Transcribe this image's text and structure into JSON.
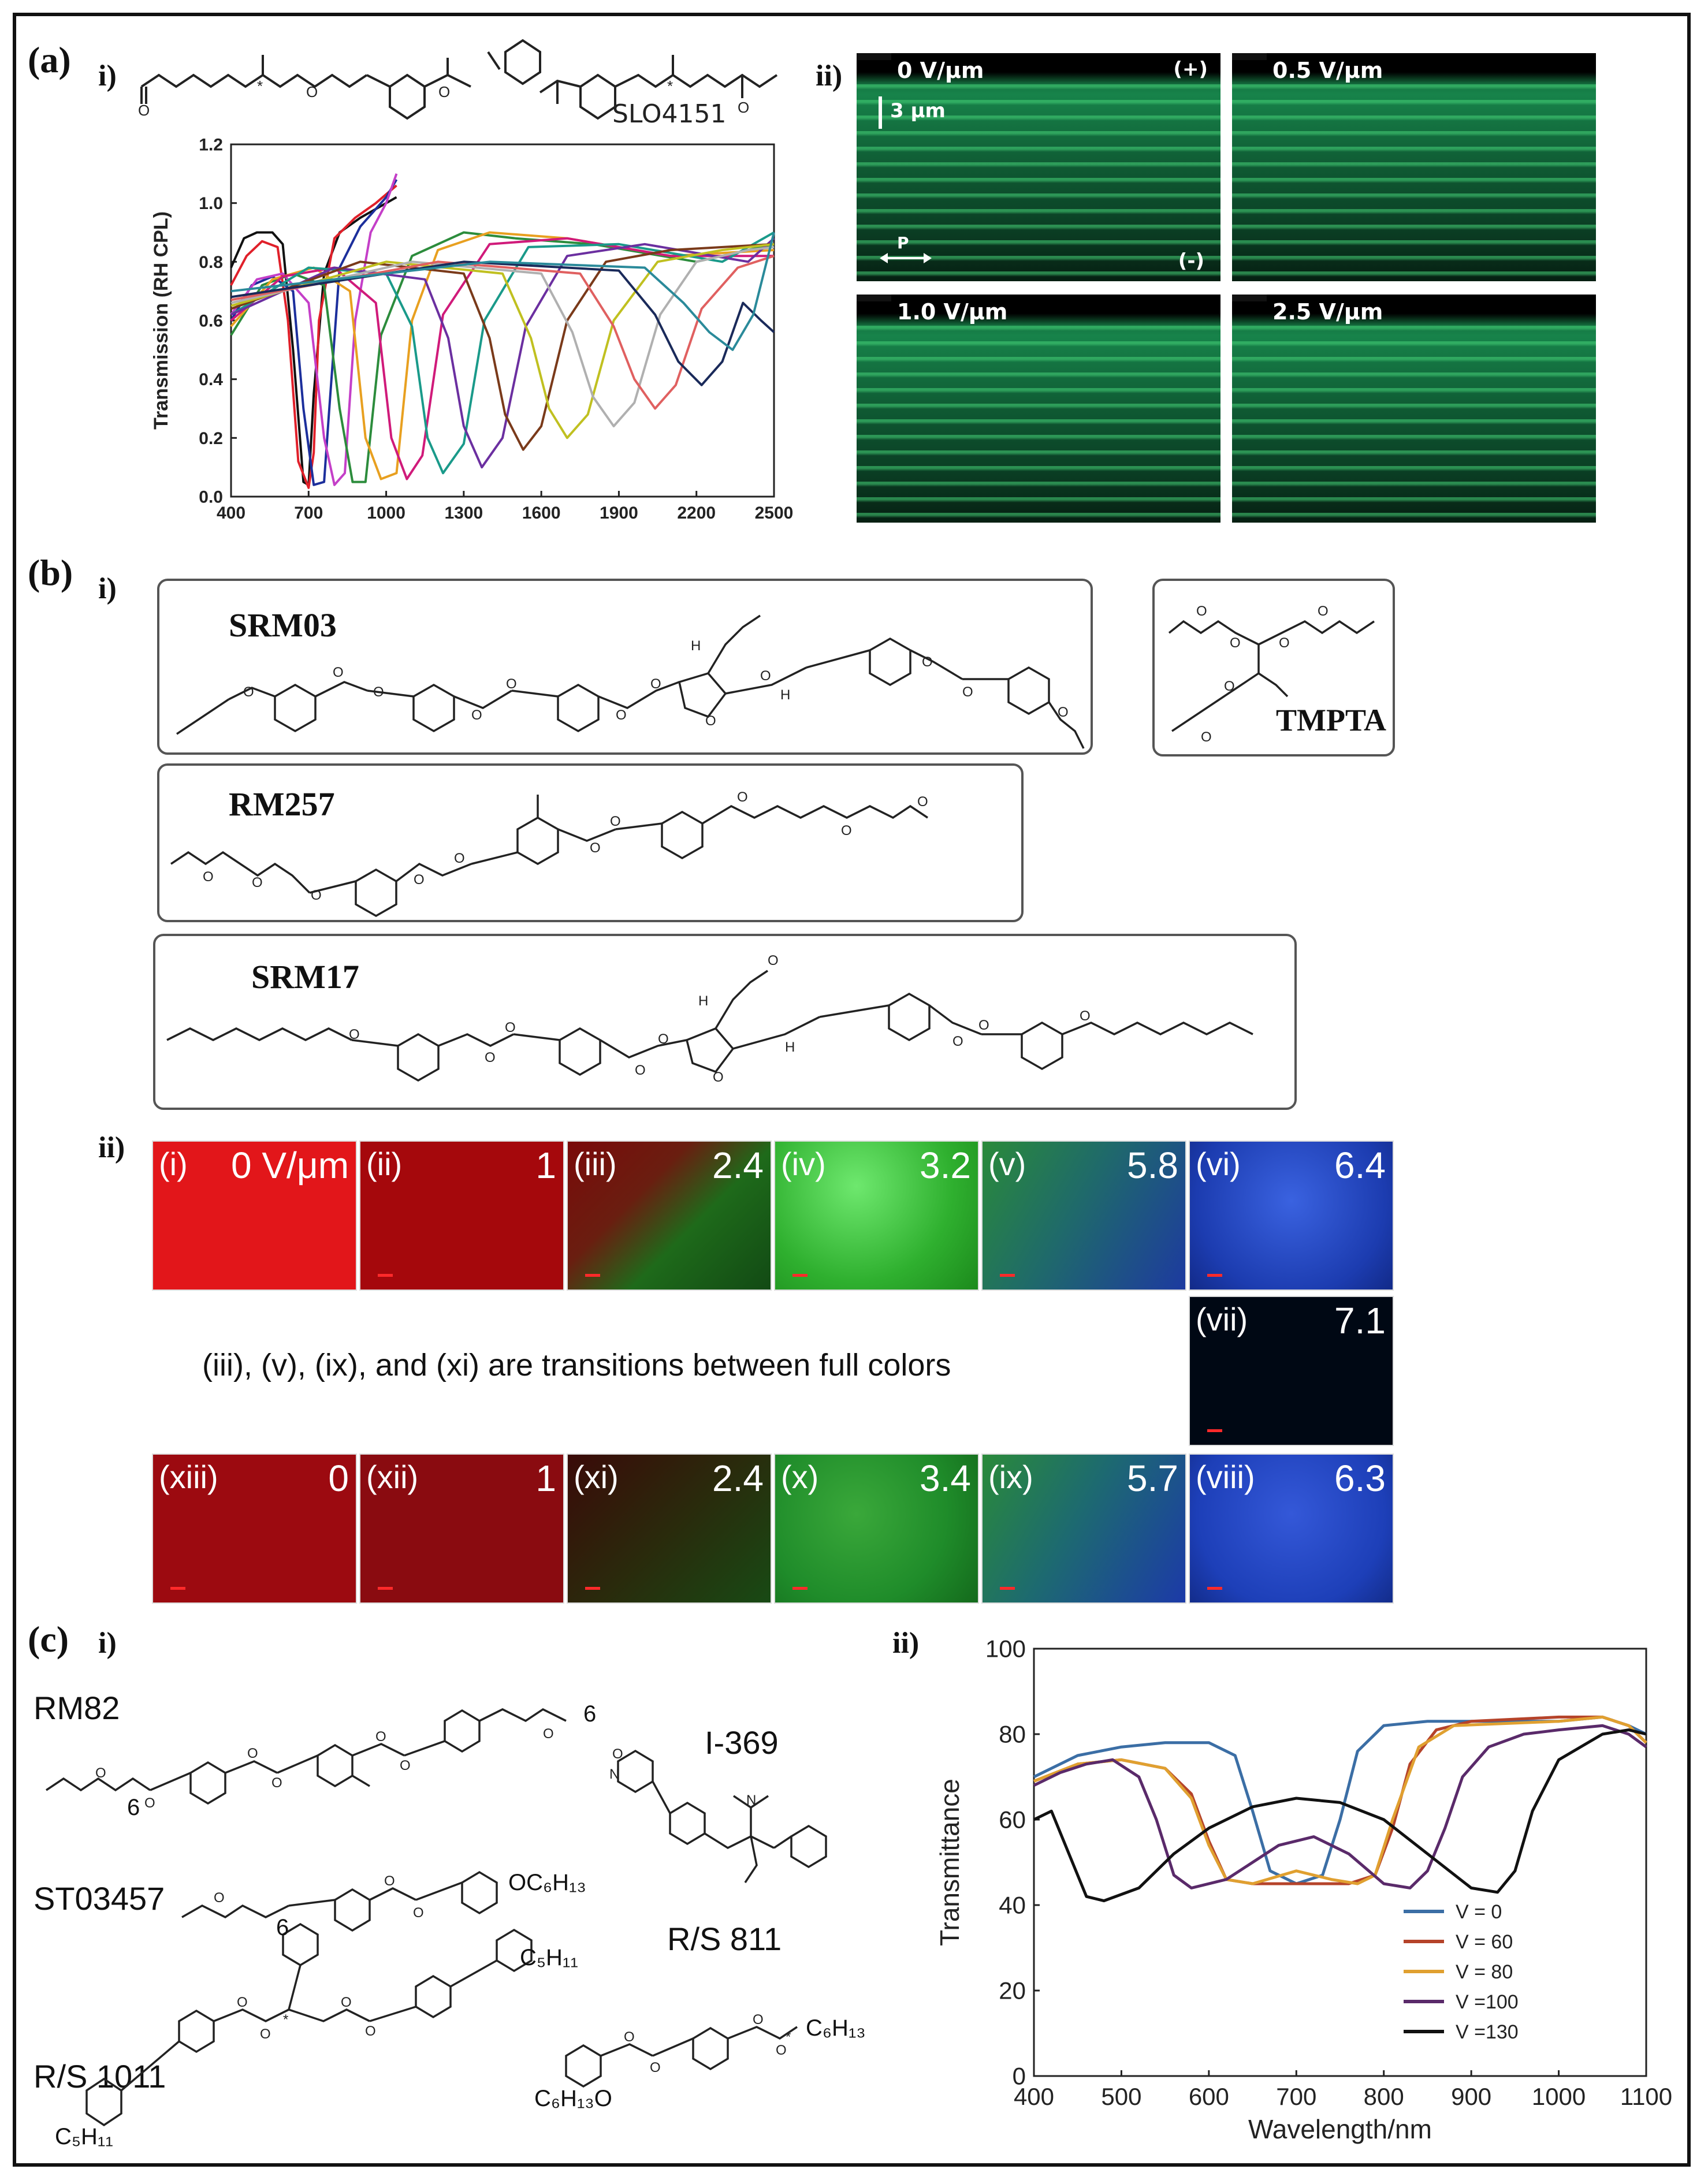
{
  "panel_labels": {
    "a": "(a)",
    "b": "(b)",
    "c": "(c)"
  },
  "sub_labels": {
    "i": "i)",
    "ii": "ii)"
  },
  "panel_a": {
    "compound_name": "SLO4151",
    "micrographs": [
      {
        "field": "0 V/μm",
        "plus": "(+)",
        "minus": "(-)",
        "scale": "3 μm",
        "pol": "P"
      },
      {
        "field": "0.5 V/μm"
      },
      {
        "field": "1.0 V/μm"
      },
      {
        "field": "2.5 V/μm"
      }
    ]
  },
  "panel_b": {
    "compounds": [
      "SRM03",
      "TMPTA",
      "RM257",
      "SRM17"
    ],
    "tiles_row1": [
      {
        "id": "(i)",
        "value": "0 V/μm",
        "color": "#e2161a"
      },
      {
        "id": "(ii)",
        "value": "1",
        "color": "#a5080c"
      },
      {
        "id": "(iii)",
        "value": "2.4",
        "color": "mix-red-green"
      },
      {
        "id": "(iv)",
        "value": "3.2",
        "color": "#33c233"
      },
      {
        "id": "(v)",
        "value": "5.8",
        "color": "mix-green-blue"
      },
      {
        "id": "(vi)",
        "value": "6.4",
        "color": "#1f48c8"
      }
    ],
    "tile_vii": {
      "id": "(vii)",
      "value": "7.1",
      "color": "#000814"
    },
    "note": "(iii), (v), (ix), and (xi) are transitions between full colors",
    "tiles_row3": [
      {
        "id": "(xiii)",
        "value": "0",
        "color": "#9c0a10"
      },
      {
        "id": "(xii)",
        "value": "1",
        "color": "#8a0b10"
      },
      {
        "id": "(xi)",
        "value": "2.4",
        "color": "mix-dark"
      },
      {
        "id": "(x)",
        "value": "3.4",
        "color": "#1f8c2a"
      },
      {
        "id": "(ix)",
        "value": "5.7",
        "color": "mix-green-blue"
      },
      {
        "id": "(viii)",
        "value": "6.3",
        "color": "#1d3fb8"
      }
    ]
  },
  "panel_c": {
    "compounds": [
      "RM82",
      "I-369",
      "ST03457",
      "R/S 811",
      "R/S 1011"
    ],
    "substituents": {
      "oc6h13": "OC₆H₁₃",
      "c6h13": "C₆H₁₃",
      "c5h11": "C₅H₁₁",
      "h13c6o": "C₆H₁₃O",
      "six": "6"
    }
  },
  "chart_data": [
    {
      "type": "line",
      "xlabel": "",
      "ylabel": "Transmission (RH CPL)",
      "xlim": [
        400,
        2500
      ],
      "ylim": [
        0.0,
        1.2
      ],
      "x_ticks": [
        "400",
        "700",
        "1000",
        "1300",
        "1600",
        "1900",
        "2200",
        "2500"
      ],
      "y_ticks": [
        "0.0",
        "0.2",
        "0.4",
        "0.6",
        "0.8",
        "1.0",
        "1.2"
      ],
      "series": [
        {
          "color": "#111111",
          "x": [
            400,
            450,
            500,
            560,
            600,
            640,
            680,
            700,
            720,
            760,
            820,
            900,
            1000,
            1040
          ],
          "y": [
            0.78,
            0.88,
            0.9,
            0.9,
            0.86,
            0.5,
            0.05,
            0.04,
            0.35,
            0.76,
            0.9,
            0.95,
            1.0,
            1.02
          ]
        },
        {
          "color": "#e0202a",
          "x": [
            400,
            460,
            520,
            580,
            620,
            660,
            700,
            720,
            740,
            800,
            880,
            960,
            1040
          ],
          "y": [
            0.72,
            0.82,
            0.87,
            0.85,
            0.6,
            0.12,
            0.03,
            0.15,
            0.6,
            0.88,
            0.95,
            1.0,
            1.06
          ]
        },
        {
          "color": "#1c2f9c",
          "x": [
            400,
            480,
            560,
            640,
            680,
            720,
            760,
            780,
            820,
            900,
            1000,
            1040
          ],
          "y": [
            0.6,
            0.72,
            0.75,
            0.7,
            0.3,
            0.04,
            0.05,
            0.3,
            0.78,
            0.92,
            1.02,
            1.08
          ]
        },
        {
          "color": "#c43fc8",
          "x": [
            400,
            500,
            600,
            700,
            760,
            800,
            840,
            880,
            940,
            1000,
            1040
          ],
          "y": [
            0.62,
            0.74,
            0.76,
            0.66,
            0.2,
            0.04,
            0.08,
            0.6,
            0.9,
            1.0,
            1.1
          ]
        },
        {
          "color": "#2c8c3c",
          "x": [
            400,
            520,
            640,
            760,
            820,
            870,
            920,
            980,
            1100,
            1300,
            1500,
            1800,
            2200,
            2500
          ],
          "y": [
            0.55,
            0.72,
            0.76,
            0.72,
            0.3,
            0.05,
            0.05,
            0.55,
            0.82,
            0.9,
            0.88,
            0.86,
            0.8,
            0.86
          ]
        },
        {
          "color": "#e8a020",
          "x": [
            400,
            560,
            720,
            860,
            920,
            980,
            1040,
            1100,
            1200,
            1400,
            1700,
            2100,
            2500
          ],
          "y": [
            0.58,
            0.74,
            0.78,
            0.7,
            0.2,
            0.06,
            0.08,
            0.6,
            0.84,
            0.9,
            0.88,
            0.82,
            0.84
          ]
        },
        {
          "color": "#d01a7a",
          "x": [
            400,
            600,
            800,
            960,
            1020,
            1080,
            1140,
            1220,
            1400,
            1700,
            2100,
            2500
          ],
          "y": [
            0.6,
            0.75,
            0.78,
            0.66,
            0.2,
            0.06,
            0.14,
            0.62,
            0.86,
            0.88,
            0.82,
            0.82
          ]
        },
        {
          "color": "#1a9a8a",
          "x": [
            400,
            700,
            1000,
            1100,
            1160,
            1220,
            1300,
            1380,
            1550,
            1900,
            2300,
            2500
          ],
          "y": [
            0.62,
            0.78,
            0.76,
            0.58,
            0.2,
            0.08,
            0.18,
            0.6,
            0.85,
            0.86,
            0.8,
            0.9
          ]
        },
        {
          "color": "#6b2fa0",
          "x": [
            400,
            800,
            1150,
            1240,
            1300,
            1370,
            1450,
            1540,
            1700,
            2000,
            2400,
            2500
          ],
          "y": [
            0.62,
            0.78,
            0.74,
            0.54,
            0.24,
            0.1,
            0.2,
            0.58,
            0.82,
            0.86,
            0.8,
            0.88
          ]
        },
        {
          "color": "#7a3a1a",
          "x": [
            400,
            900,
            1300,
            1400,
            1460,
            1530,
            1600,
            1700,
            1850,
            2100,
            2500
          ],
          "y": [
            0.64,
            0.8,
            0.76,
            0.54,
            0.28,
            0.16,
            0.24,
            0.6,
            0.8,
            0.84,
            0.86
          ]
        },
        {
          "color": "#c0c020",
          "x": [
            400,
            1000,
            1450,
            1560,
            1630,
            1700,
            1780,
            1880,
            2050,
            2300,
            2500
          ],
          "y": [
            0.65,
            0.8,
            0.76,
            0.54,
            0.3,
            0.2,
            0.28,
            0.6,
            0.8,
            0.84,
            0.86
          ]
        },
        {
          "color": "#b0b0b0",
          "x": [
            400,
            1100,
            1600,
            1720,
            1800,
            1880,
            1960,
            2060,
            2200,
            2400,
            2500
          ],
          "y": [
            0.66,
            0.8,
            0.76,
            0.56,
            0.34,
            0.24,
            0.32,
            0.62,
            0.8,
            0.84,
            0.85
          ]
        },
        {
          "color": "#e06060",
          "x": [
            400,
            1200,
            1750,
            1880,
            1960,
            2040,
            2120,
            2220,
            2360,
            2500
          ],
          "y": [
            0.67,
            0.8,
            0.76,
            0.58,
            0.4,
            0.3,
            0.38,
            0.64,
            0.78,
            0.82
          ]
        },
        {
          "color": "#1a2a5a",
          "x": [
            400,
            1300,
            1900,
            2040,
            2130,
            2220,
            2300,
            2380,
            2450,
            2500
          ],
          "y": [
            0.68,
            0.8,
            0.77,
            0.62,
            0.46,
            0.38,
            0.46,
            0.66,
            0.6,
            0.56
          ]
        },
        {
          "color": "#2a8a9a",
          "x": [
            400,
            1400,
            2000,
            2150,
            2250,
            2340,
            2420,
            2500
          ],
          "y": [
            0.7,
            0.8,
            0.78,
            0.66,
            0.56,
            0.5,
            0.62,
            0.9
          ]
        }
      ]
    },
    {
      "type": "line",
      "xlabel": "Wavelength/nm",
      "ylabel": "Transmittance",
      "xlim": [
        400,
        1100
      ],
      "ylim": [
        0,
        100
      ],
      "x_ticks": [
        "400",
        "500",
        "600",
        "700",
        "800",
        "900",
        "1000",
        "1100"
      ],
      "y_ticks": [
        "0",
        "20",
        "40",
        "60",
        "80",
        "100"
      ],
      "legend_position": "bottom-right",
      "series": [
        {
          "name": "V = 0",
          "color": "#3b6ea5",
          "x": [
            400,
            450,
            500,
            550,
            600,
            630,
            650,
            670,
            700,
            730,
            750,
            770,
            800,
            850,
            900,
            1000,
            1050,
            1080,
            1100
          ],
          "y": [
            70,
            75,
            77,
            78,
            78,
            75,
            62,
            48,
            45,
            47,
            60,
            76,
            82,
            83,
            83,
            83,
            84,
            82,
            80
          ]
        },
        {
          "name": "V = 60",
          "color": "#b5432a",
          "x": [
            400,
            450,
            500,
            550,
            580,
            600,
            620,
            650,
            700,
            760,
            790,
            810,
            830,
            860,
            900,
            1000,
            1050,
            1080,
            1100
          ],
          "y": [
            69,
            73,
            74,
            72,
            66,
            55,
            46,
            45,
            45,
            45,
            47,
            58,
            73,
            81,
            83,
            84,
            84,
            82,
            78
          ]
        },
        {
          "name": "V = 80",
          "color": "#e0a030",
          "x": [
            400,
            450,
            500,
            550,
            580,
            600,
            620,
            650,
            700,
            740,
            770,
            790,
            810,
            840,
            880,
            1000,
            1050,
            1080,
            1100
          ],
          "y": [
            69,
            73,
            74,
            72,
            65,
            54,
            46,
            45,
            48,
            46,
            45,
            47,
            60,
            77,
            82,
            83,
            84,
            82,
            78
          ]
        },
        {
          "name": "V =100",
          "color": "#5a2a6a",
          "x": [
            400,
            430,
            460,
            490,
            520,
            540,
            560,
            580,
            620,
            680,
            720,
            760,
            800,
            830,
            850,
            870,
            890,
            920,
            960,
            1000,
            1050,
            1080,
            1100
          ],
          "y": [
            68,
            71,
            73,
            74,
            70,
            60,
            47,
            44,
            46,
            54,
            56,
            52,
            45,
            44,
            48,
            58,
            70,
            77,
            80,
            81,
            82,
            80,
            77
          ]
        },
        {
          "name": "V =130",
          "color": "#111111",
          "x": [
            400,
            420,
            440,
            460,
            480,
            520,
            560,
            600,
            650,
            700,
            750,
            800,
            850,
            900,
            930,
            950,
            970,
            1000,
            1050,
            1080,
            1100
          ],
          "y": [
            60,
            62,
            52,
            42,
            41,
            44,
            52,
            58,
            63,
            65,
            64,
            60,
            52,
            44,
            43,
            48,
            62,
            74,
            80,
            81,
            80
          ]
        }
      ]
    }
  ]
}
